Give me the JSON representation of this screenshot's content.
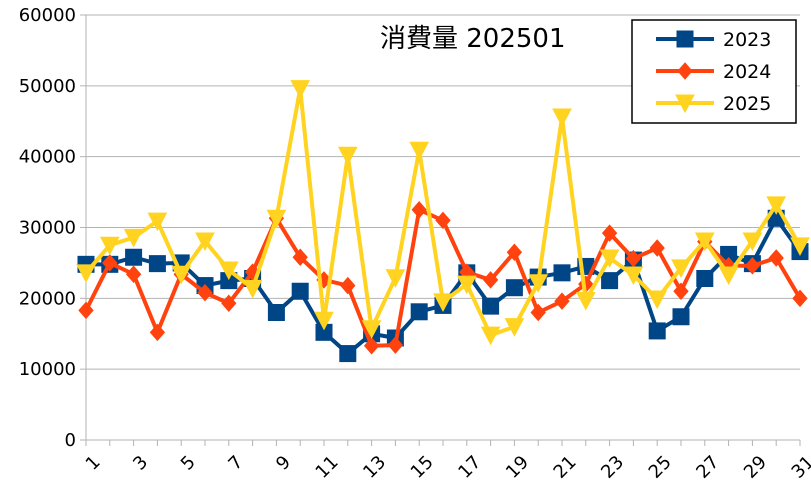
{
  "chart_data": {
    "type": "line",
    "title": "消費量 202501",
    "xlabel": "",
    "ylabel": "",
    "ylim": [
      0,
      60000
    ],
    "yticks": [
      0,
      10000,
      20000,
      30000,
      40000,
      50000,
      60000
    ],
    "x": [
      1,
      2,
      3,
      4,
      5,
      6,
      7,
      8,
      9,
      10,
      11,
      12,
      13,
      14,
      15,
      16,
      17,
      18,
      19,
      20,
      21,
      22,
      23,
      24,
      25,
      26,
      27,
      28,
      29,
      30,
      31
    ],
    "xtick_labels": [
      "1",
      "3",
      "5",
      "7",
      "9",
      "11",
      "13",
      "15",
      "17",
      "19",
      "21",
      "23",
      "25",
      "27",
      "29",
      "31"
    ],
    "grid": "horizontal",
    "legend_position": "top-right",
    "series": [
      {
        "name": "2023",
        "color": "#004586",
        "marker": "square",
        "values": [
          24800,
          24800,
          25800,
          24900,
          25000,
          21800,
          22500,
          22800,
          18000,
          21000,
          15200,
          12200,
          15000,
          14400,
          18100,
          19000,
          23600,
          18900,
          21500,
          23000,
          23600,
          24500,
          22500,
          25400,
          15400,
          17400,
          22800,
          26200,
          24900,
          31300,
          26600
        ]
      },
      {
        "name": "2024",
        "color": "#ff420e",
        "marker": "diamond",
        "values": [
          18300,
          25000,
          23400,
          15200,
          23400,
          20800,
          19300,
          23700,
          31300,
          25800,
          22600,
          21800,
          13300,
          13400,
          32500,
          31000,
          23700,
          22600,
          26500,
          18000,
          19600,
          22000,
          29200,
          25600,
          27100,
          21000,
          28000,
          24600,
          24600,
          25700,
          20000
        ]
      },
      {
        "name": "2025",
        "color": "#ffd320",
        "marker": "triangle-down",
        "values": [
          23600,
          27500,
          28600,
          30900,
          23400,
          28100,
          24000,
          21400,
          31300,
          49600,
          16900,
          40200,
          15700,
          22900,
          40900,
          19500,
          22000,
          14800,
          16000,
          22200,
          45600,
          19700,
          25700,
          23300,
          19900,
          24300,
          28100,
          23300,
          28100,
          33200,
          27400
        ]
      }
    ]
  }
}
